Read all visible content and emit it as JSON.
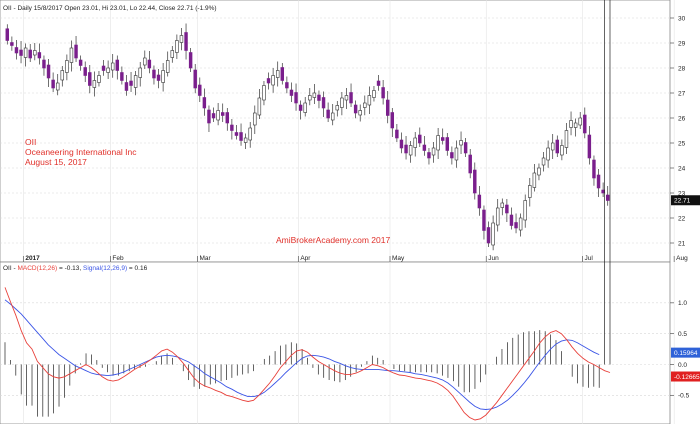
{
  "header": {
    "price": "OII - Daily 15/8/2017 Open 23.01, Hi 23.01, Lo 22.44, Close 22.71 (-1.9%)",
    "macd_prefix": "OII - ",
    "macd_label": "MACD(12,26)",
    "macd_value": " = -0.13, ",
    "signal_label": "Signal(12,26,9)",
    "signal_value": " = 0.16"
  },
  "annotations": {
    "ticker": "OII",
    "company": "Oceaneering International Inc",
    "date": "August 15, 2017",
    "watermark": "AmiBrokerAcademy.com  2017"
  },
  "price_axis": {
    "labels": [
      "30",
      "29",
      "28",
      "27",
      "26",
      "25",
      "24",
      "23",
      "22",
      "21"
    ],
    "last_badge": "22.71"
  },
  "macd_axis": {
    "labels": [
      "1.0",
      "0.5",
      "0.0",
      "-0.5"
    ],
    "signal_badge": "0.15964",
    "macd_badge": "-0.12665"
  },
  "time_axis": {
    "labels": [
      "2017",
      "Feb",
      "Mar",
      "Apr",
      "May",
      "Jun",
      "Jul",
      "Aug"
    ]
  },
  "colors": {
    "up_candle": "#ffffff",
    "down_candle": "#7a1f8c",
    "macd_line": "#e8403a",
    "signal_line": "#3b55e6",
    "histogram": "#222222",
    "grid": "#d8d8d8",
    "last_price_badge": "#111111",
    "signal_badge": "#2f62d8",
    "macd_badge": "#e02020"
  },
  "chart_data": [
    {
      "type": "candlestick",
      "title": "OII - Daily 15/8/2017",
      "ylim": [
        20.4,
        30.4
      ],
      "x_start_label": "2017",
      "month_labels": [
        "2017",
        "Feb",
        "Mar",
        "Apr",
        "May",
        "Jun",
        "Jul",
        "Aug"
      ],
      "month_start_index": [
        4,
        23,
        42,
        64,
        84,
        105,
        126,
        146
      ],
      "close": [
        29.1,
        28.9,
        28.6,
        28.5,
        28.8,
        28.4,
        28.7,
        28.4,
        28.0,
        27.6,
        27.2,
        27.4,
        27.9,
        28.3,
        28.8,
        28.4,
        28.1,
        27.7,
        27.3,
        27.5,
        27.7,
        27.9,
        28.0,
        28.2,
        27.9,
        27.5,
        27.1,
        27.3,
        27.7,
        28.0,
        28.4,
        28.0,
        27.6,
        27.5,
        27.9,
        28.3,
        28.7,
        29.1,
        29.3,
        28.7,
        28.0,
        27.2,
        26.9,
        26.4,
        25.8,
        26.0,
        26.3,
        26.1,
        25.8,
        25.5,
        25.3,
        25.1,
        25.2,
        25.6,
        26.2,
        26.8,
        27.3,
        27.4,
        27.7,
        27.9,
        27.5,
        27.2,
        26.9,
        26.6,
        26.3,
        26.6,
        26.9,
        27.0,
        26.7,
        26.4,
        26.0,
        26.2,
        26.5,
        26.8,
        26.9,
        26.6,
        26.2,
        26.3,
        26.6,
        26.9,
        27.1,
        27.3,
        26.8,
        26.1,
        25.6,
        25.2,
        24.8,
        24.6,
        24.9,
        25.2,
        25.0,
        24.7,
        24.4,
        24.8,
        25.3,
        25.1,
        24.7,
        24.4,
        24.8,
        25.1,
        24.6,
        23.8,
        23.0,
        22.4,
        21.5,
        21.0,
        21.8,
        22.4,
        22.6,
        22.2,
        21.7,
        21.6,
        22.0,
        22.7,
        23.3,
        23.8,
        24.0,
        24.4,
        24.8,
        25.0,
        24.6,
        24.9,
        25.5,
        25.9,
        25.8,
        26.0,
        25.4,
        24.4,
        23.6,
        23.2,
        23.0,
        22.7
      ],
      "open_offset": 0.35,
      "last_close": 22.71
    },
    {
      "type": "line",
      "title": "MACD(12,26)",
      "ylim": [
        -0.9,
        1.5
      ],
      "series": [
        {
          "name": "MACD(12,26)",
          "values": [
            1.25,
            1.02,
            0.8,
            0.55,
            0.35,
            0.25,
            0.05,
            -0.05,
            -0.15,
            -0.2,
            -0.22,
            -0.2,
            -0.15,
            -0.1,
            -0.05,
            0.0,
            -0.05,
            -0.12,
            -0.2,
            -0.25,
            -0.27,
            -0.25,
            -0.2,
            -0.14,
            -0.08,
            -0.03,
            0.02,
            0.08,
            0.15,
            0.22,
            0.25,
            0.2,
            0.12,
            0.02,
            -0.1,
            -0.22,
            -0.3,
            -0.35,
            -0.38,
            -0.42,
            -0.45,
            -0.5,
            -0.52,
            -0.55,
            -0.58,
            -0.6,
            -0.58,
            -0.5,
            -0.4,
            -0.3,
            -0.18,
            -0.05,
            0.05,
            0.15,
            0.22,
            0.24,
            0.2,
            0.12,
            0.05,
            0.0,
            -0.05,
            -0.1,
            -0.14,
            -0.16,
            -0.16,
            -0.14,
            -0.1,
            -0.05,
            0.0,
            -0.02,
            -0.05,
            -0.1,
            -0.14,
            -0.17,
            -0.18,
            -0.2,
            -0.22,
            -0.23,
            -0.25,
            -0.27,
            -0.3,
            -0.35,
            -0.42,
            -0.52,
            -0.65,
            -0.78,
            -0.86,
            -0.9,
            -0.88,
            -0.82,
            -0.72,
            -0.62,
            -0.5,
            -0.38,
            -0.26,
            -0.14,
            -0.02,
            0.1,
            0.22,
            0.35,
            0.45,
            0.52,
            0.55,
            0.5,
            0.4,
            0.28,
            0.18,
            0.1,
            0.04,
            0.0,
            -0.05,
            -0.1,
            -0.13
          ]
        },
        {
          "name": "Signal(12,26,9)",
          "values": [
            1.05,
            0.98,
            0.9,
            0.82,
            0.72,
            0.62,
            0.52,
            0.42,
            0.32,
            0.24,
            0.16,
            0.1,
            0.04,
            -0.02,
            -0.06,
            -0.1,
            -0.14,
            -0.16,
            -0.17,
            -0.18,
            -0.17,
            -0.15,
            -0.12,
            -0.08,
            -0.04,
            0.0,
            0.04,
            0.08,
            0.12,
            0.14,
            0.15,
            0.14,
            0.12,
            0.08,
            0.04,
            -0.02,
            -0.08,
            -0.15,
            -0.2,
            -0.25,
            -0.3,
            -0.36,
            -0.4,
            -0.45,
            -0.49,
            -0.52,
            -0.52,
            -0.5,
            -0.45,
            -0.38,
            -0.3,
            -0.22,
            -0.13,
            -0.05,
            0.03,
            0.1,
            0.14,
            0.15,
            0.14,
            0.12,
            0.09,
            0.05,
            0.02,
            -0.02,
            -0.05,
            -0.07,
            -0.08,
            -0.08,
            -0.08,
            -0.08,
            -0.09,
            -0.1,
            -0.1,
            -0.11,
            -0.12,
            -0.13,
            -0.15,
            -0.16,
            -0.18,
            -0.2,
            -0.22,
            -0.25,
            -0.3,
            -0.37,
            -0.45,
            -0.53,
            -0.61,
            -0.68,
            -0.72,
            -0.73,
            -0.72,
            -0.69,
            -0.64,
            -0.58,
            -0.5,
            -0.41,
            -0.31,
            -0.2,
            -0.08,
            0.04,
            0.15,
            0.25,
            0.33,
            0.38,
            0.4,
            0.39,
            0.35,
            0.3,
            0.25,
            0.2,
            0.16
          ]
        }
      ],
      "histogram": "MACD minus Signal, scaled by 1.8 for display"
    }
  ]
}
